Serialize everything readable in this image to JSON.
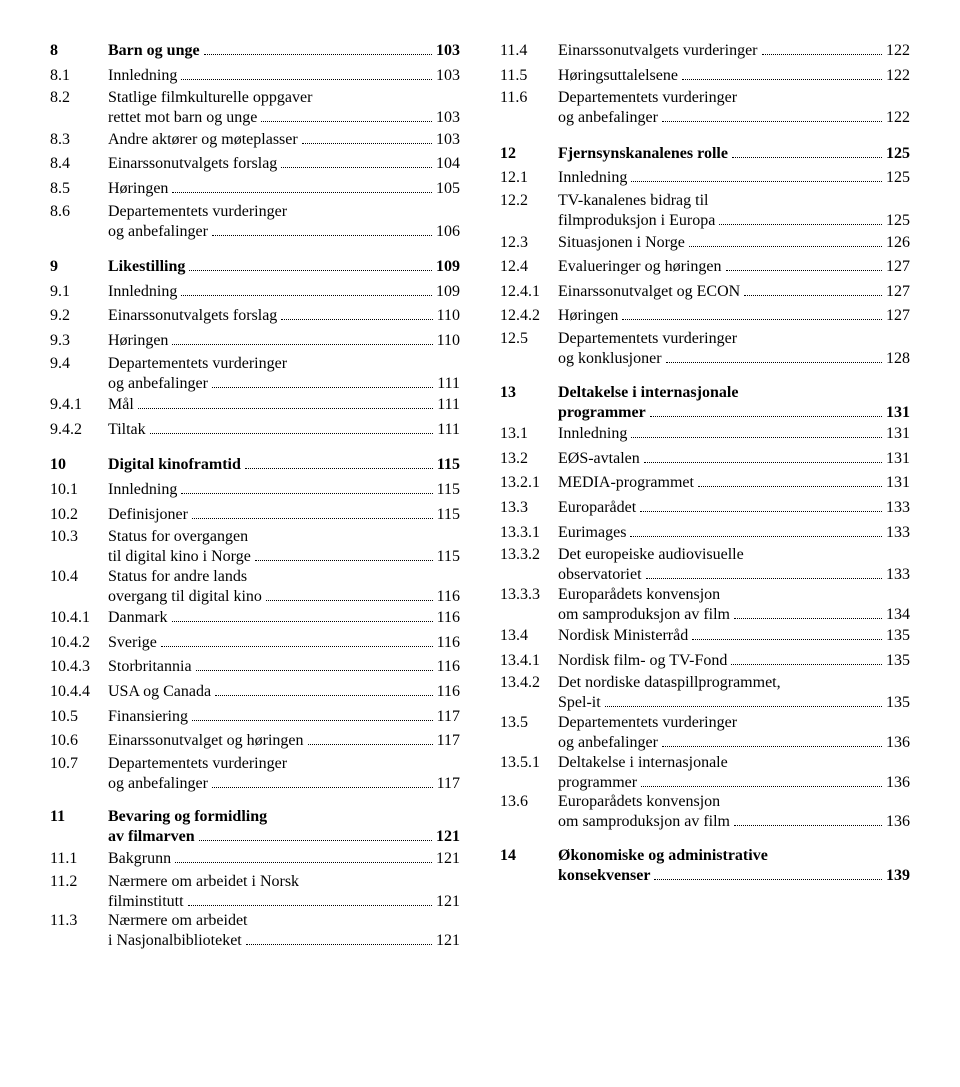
{
  "left": [
    {
      "type": "chapter",
      "num": "8",
      "title": "Barn og unge",
      "page": "103"
    },
    {
      "type": "row",
      "num": "8.1",
      "title": "Innledning",
      "page": "103"
    },
    {
      "type": "multi",
      "num": "8.2",
      "l1": "Statlige filmkulturelle oppgaver",
      "l2": "rettet mot barn og unge",
      "page": "103"
    },
    {
      "type": "row",
      "num": "8.3",
      "title": "Andre aktører og møteplasser",
      "page": "103"
    },
    {
      "type": "row",
      "num": "8.4",
      "title": "Einarssonutvalgets forslag",
      "page": "104"
    },
    {
      "type": "row",
      "num": "8.5",
      "title": "Høringen",
      "page": "105"
    },
    {
      "type": "multi",
      "num": "8.6",
      "l1": "Departementets vurderinger",
      "l2": "og anbefalinger",
      "page": "106"
    },
    {
      "type": "chapter",
      "num": "9",
      "title": "Likestilling",
      "page": "109"
    },
    {
      "type": "row",
      "num": "9.1",
      "title": "Innledning",
      "page": "109"
    },
    {
      "type": "row",
      "num": "9.2",
      "title": "Einarssonutvalgets forslag",
      "page": "110"
    },
    {
      "type": "row",
      "num": "9.3",
      "title": "Høringen",
      "page": "110"
    },
    {
      "type": "multi",
      "num": "9.4",
      "l1": "Departementets vurderinger",
      "l2": "og anbefalinger",
      "page": "111"
    },
    {
      "type": "row",
      "num": "9.4.1",
      "title": "Mål",
      "page": "111"
    },
    {
      "type": "row",
      "num": "9.4.2",
      "title": "Tiltak",
      "page": "111"
    },
    {
      "type": "chapter",
      "num": "10",
      "title": "Digital kinoframtid",
      "page": "115"
    },
    {
      "type": "row",
      "num": "10.1",
      "title": "Innledning",
      "page": "115"
    },
    {
      "type": "row",
      "num": "10.2",
      "title": "Definisjoner",
      "page": "115"
    },
    {
      "type": "multi",
      "num": "10.3",
      "l1": "Status for overgangen",
      "l2": "til digital kino i Norge",
      "page": "115"
    },
    {
      "type": "multi",
      "num": "10.4",
      "l1": "Status for andre lands",
      "l2": "overgang til digital kino",
      "page": "116"
    },
    {
      "type": "row",
      "num": "10.4.1",
      "title": "Danmark",
      "page": "116"
    },
    {
      "type": "row",
      "num": "10.4.2",
      "title": "Sverige",
      "page": "116"
    },
    {
      "type": "row",
      "num": "10.4.3",
      "title": "Storbritannia",
      "page": "116"
    },
    {
      "type": "row",
      "num": "10.4.4",
      "title": "USA og Canada",
      "page": "116"
    },
    {
      "type": "row",
      "num": "10.5",
      "title": "Finansiering",
      "page": "117"
    },
    {
      "type": "row",
      "num": "10.6",
      "title": "Einarssonutvalget og høringen",
      "page": "117"
    },
    {
      "type": "multi",
      "num": "10.7",
      "l1": "Departementets vurderinger",
      "l2": "og anbefalinger",
      "page": "117"
    },
    {
      "type": "chapter-multi",
      "num": "11",
      "l1": "Bevaring og formidling",
      "l2": "av filmarven",
      "page": "121"
    },
    {
      "type": "row",
      "num": "11.1",
      "title": "Bakgrunn",
      "page": "121"
    },
    {
      "type": "multi",
      "num": "11.2",
      "l1": "Nærmere om arbeidet i Norsk",
      "l2": "filminstitutt",
      "page": "121"
    },
    {
      "type": "multi",
      "num": "11.3",
      "l1": "Nærmere om arbeidet",
      "l2": "i Nasjonalbiblioteket",
      "page": "121"
    }
  ],
  "right": [
    {
      "type": "row",
      "num": "11.4",
      "title": "Einarssonutvalgets vurderinger",
      "page": "122"
    },
    {
      "type": "row",
      "num": "11.5",
      "title": "Høringsuttalelsene",
      "page": "122"
    },
    {
      "type": "multi",
      "num": "11.6",
      "l1": "Departementets vurderinger",
      "l2": "og anbefalinger",
      "page": "122"
    },
    {
      "type": "chapter",
      "num": "12",
      "title": "Fjernsynskanalenes rolle",
      "page": "125"
    },
    {
      "type": "row",
      "num": "12.1",
      "title": "Innledning",
      "page": "125"
    },
    {
      "type": "multi",
      "num": "12.2",
      "l1": "TV-kanalenes bidrag til",
      "l2": "filmproduksjon i Europa",
      "page": "125"
    },
    {
      "type": "row",
      "num": "12.3",
      "title": "Situasjonen i Norge",
      "page": "126"
    },
    {
      "type": "row",
      "num": "12.4",
      "title": "Evalueringer og høringen",
      "page": "127"
    },
    {
      "type": "row",
      "num": "12.4.1",
      "title": "Einarssonutvalget og ECON",
      "page": "127"
    },
    {
      "type": "row",
      "num": "12.4.2",
      "title": "Høringen",
      "page": "127"
    },
    {
      "type": "multi",
      "num": "12.5",
      "l1": "Departementets vurderinger",
      "l2": "og konklusjoner",
      "page": "128"
    },
    {
      "type": "chapter-multi",
      "num": "13",
      "l1": "Deltakelse i internasjonale",
      "l2": "programmer",
      "page": "131"
    },
    {
      "type": "row",
      "num": "13.1",
      "title": "Innledning",
      "page": "131"
    },
    {
      "type": "row",
      "num": "13.2",
      "title": "EØS-avtalen",
      "page": "131"
    },
    {
      "type": "row",
      "num": "13.2.1",
      "title": "MEDIA-programmet",
      "page": "131"
    },
    {
      "type": "row",
      "num": "13.3",
      "title": "Europarådet",
      "page": "133"
    },
    {
      "type": "row",
      "num": "13.3.1",
      "title": "Eurimages",
      "page": "133"
    },
    {
      "type": "multi",
      "num": "13.3.2",
      "l1": "Det europeiske audiovisuelle",
      "l2": "observatoriet",
      "page": "133"
    },
    {
      "type": "multi",
      "num": "13.3.3",
      "l1": "Europarådets konvensjon",
      "l2": "om samproduksjon av film",
      "page": "134"
    },
    {
      "type": "row",
      "num": "13.4",
      "title": "Nordisk Ministerråd",
      "page": "135"
    },
    {
      "type": "row",
      "num": "13.4.1",
      "title": "Nordisk film- og TV-Fond",
      "page": "135"
    },
    {
      "type": "multi",
      "num": "13.4.2",
      "l1": "Det nordiske dataspillprogrammet,",
      "l2": "Spel-it",
      "page": "135"
    },
    {
      "type": "multi",
      "num": "13.5",
      "l1": "Departementets vurderinger",
      "l2": "og anbefalinger",
      "page": "136"
    },
    {
      "type": "multi",
      "num": "13.5.1",
      "l1": "Deltakelse i internasjonale",
      "l2": "programmer",
      "page": "136"
    },
    {
      "type": "multi",
      "num": "13.6",
      "l1": "Europarådets konvensjon",
      "l2": "om samproduksjon av film",
      "page": "136"
    },
    {
      "type": "chapter-multi",
      "num": "14",
      "l1": "Økonomiske og administrative",
      "l2": "konsekvenser",
      "page": "139"
    }
  ]
}
